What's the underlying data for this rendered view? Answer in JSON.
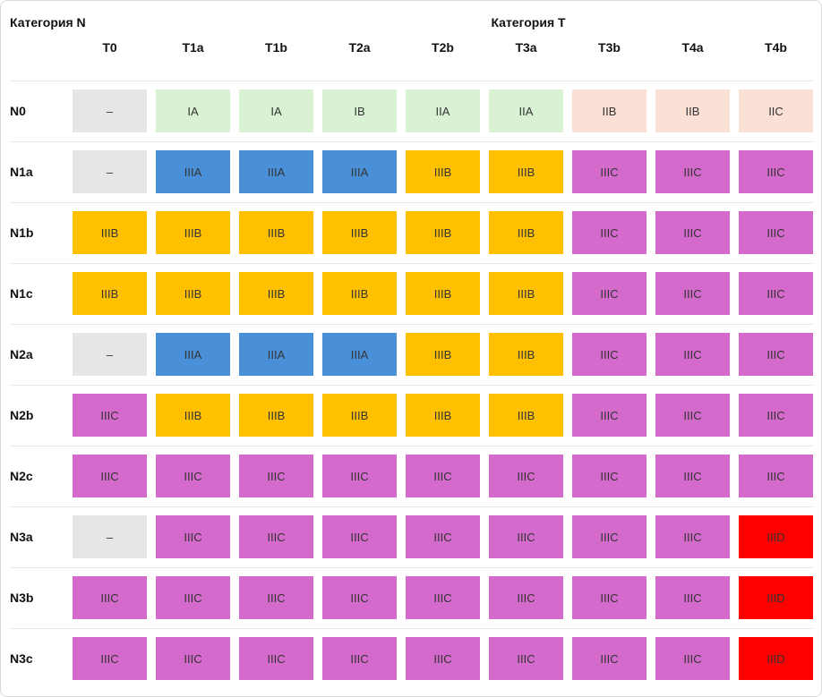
{
  "headers": {
    "n_category": "Категория N",
    "t_category": "Категория T",
    "t_columns": [
      "T0",
      "T1a",
      "T1b",
      "T2a",
      "T2b",
      "T3a",
      "T3b",
      "T4a",
      "T4b"
    ]
  },
  "rows": [
    {
      "n": "N0",
      "cells": [
        "–",
        "IA",
        "IA",
        "IB",
        "IIA",
        "IIA",
        "IIB",
        "IIB",
        "IIC"
      ]
    },
    {
      "n": "N1a",
      "cells": [
        "–",
        "IIIA",
        "IIIA",
        "IIIA",
        "IIIB",
        "IIIB",
        "IIIC",
        "IIIC",
        "IIIC"
      ]
    },
    {
      "n": "N1b",
      "cells": [
        "IIIB",
        "IIIB",
        "IIIB",
        "IIIB",
        "IIIB",
        "IIIB",
        "IIIC",
        "IIIC",
        "IIIC"
      ]
    },
    {
      "n": "N1c",
      "cells": [
        "IIIB",
        "IIIB",
        "IIIB",
        "IIIB",
        "IIIB",
        "IIIB",
        "IIIC",
        "IIIC",
        "IIIC"
      ]
    },
    {
      "n": "N2a",
      "cells": [
        "–",
        "IIIA",
        "IIIA",
        "IIIA",
        "IIIB",
        "IIIB",
        "IIIC",
        "IIIC",
        "IIIC"
      ]
    },
    {
      "n": "N2b",
      "cells": [
        "IIIC",
        "IIIB",
        "IIIB",
        "IIIB",
        "IIIB",
        "IIIB",
        "IIIC",
        "IIIC",
        "IIIC"
      ]
    },
    {
      "n": "N2c",
      "cells": [
        "IIIC",
        "IIIC",
        "IIIC",
        "IIIC",
        "IIIC",
        "IIIC",
        "IIIC",
        "IIIC",
        "IIIC"
      ]
    },
    {
      "n": "N3a",
      "cells": [
        "–",
        "IIIC",
        "IIIC",
        "IIIC",
        "IIIC",
        "IIIC",
        "IIIC",
        "IIIC",
        "IIID"
      ]
    },
    {
      "n": "N3b",
      "cells": [
        "IIIC",
        "IIIC",
        "IIIC",
        "IIIC",
        "IIIC",
        "IIIC",
        "IIIC",
        "IIIC",
        "IIID"
      ]
    },
    {
      "n": "N3c",
      "cells": [
        "IIIC",
        "IIIC",
        "IIIC",
        "IIIC",
        "IIIC",
        "IIIC",
        "IIIC",
        "IIIC",
        "IIID"
      ]
    }
  ],
  "stage_colors": {
    "none": "#e6e6e6",
    "IA": "#d9f2d3",
    "IB": "#d9f2d3",
    "IIA": "#d9f2d3",
    "IIB": "#fbe1d5",
    "IIC": "#fbe1d5",
    "IIIA": "#4a90d9",
    "IIIB": "#ffc000",
    "IIIC": "#d46acb",
    "IIID": "#ff0000"
  }
}
